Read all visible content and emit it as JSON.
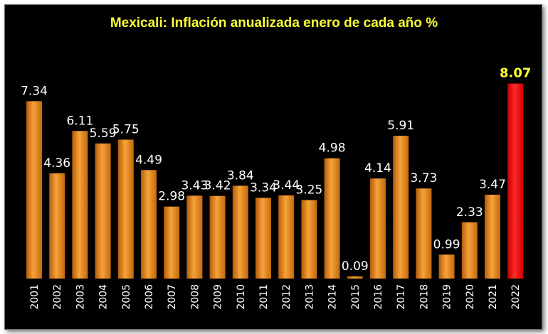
{
  "chart_data": {
    "type": "bar",
    "title": "Mexicali: Inflación anualizada enero de cada año %",
    "xlabel": "",
    "ylabel": "",
    "ylim": [
      0,
      9
    ],
    "grid": false,
    "legend": "none",
    "categories": [
      "2001",
      "2002",
      "2003",
      "2004",
      "2005",
      "2006",
      "2007",
      "2008",
      "2009",
      "2010",
      "2011",
      "2012",
      "2013",
      "2014",
      "2015",
      "2016",
      "2017",
      "2018",
      "2019",
      "2020",
      "2021",
      "2022"
    ],
    "values": [
      7.34,
      4.36,
      6.11,
      5.59,
      5.75,
      4.49,
      2.98,
      3.43,
      3.42,
      3.84,
      3.34,
      3.44,
      3.25,
      4.98,
      0.09,
      4.14,
      5.91,
      3.73,
      0.99,
      2.33,
      3.47,
      8.07
    ],
    "value_labels": [
      "7.34",
      "4.36",
      "6.11",
      "5.59",
      "5.75",
      "4.49",
      "2.98",
      "3.43",
      "3.42",
      "3.84",
      "3.34",
      "3.44",
      "3.25",
      "4.98",
      "0.09",
      "4.14",
      "5.91",
      "3.73",
      "0.99",
      "2.33",
      "3.47",
      "8.07"
    ],
    "highlight_category": "2022",
    "colors": {
      "bar": "#f0901e",
      "bar_highlight": "#ff1a1a",
      "title": "#ffff33",
      "background": "#000000",
      "label": "#ffffff",
      "highlight_label": "#ffff33"
    }
  }
}
